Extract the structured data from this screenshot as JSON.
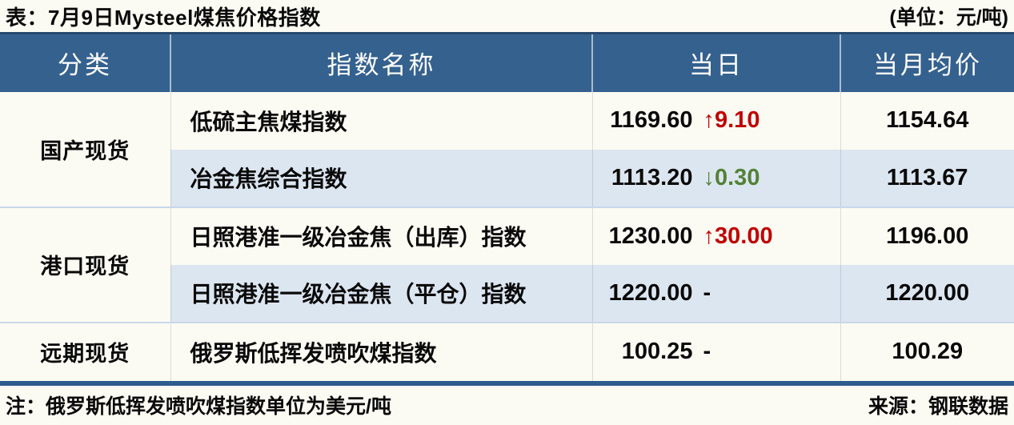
{
  "colors": {
    "header_bg": "#35618F",
    "header_top_edge": "#27496E",
    "header_text": "#FFFFFF",
    "alt_row_bg": "#DCE6F1",
    "page_bg": "#FCFBF3",
    "up": "#C00000",
    "down": "#538135",
    "text": "#0A0A0A",
    "table_bottom_border": "#2F5C8E",
    "group_separator": "#C9D7E9"
  },
  "title": {
    "text": "表：7月9日Mysteel煤焦价格指数",
    "unit": "(单位：元/吨)"
  },
  "table": {
    "columns": [
      "分类",
      "指数名称",
      "当日",
      "当月均价"
    ],
    "rows": [
      {
        "category": "国产现货",
        "category_span": 2,
        "name": "低硫主焦煤指数",
        "today_value": "1169.60",
        "today_change": "↑9.10",
        "change_dir": "up",
        "month_avg": "1154.64"
      },
      {
        "name": "冶金焦综合指数",
        "today_value": "1113.20",
        "today_change": "↓0.30",
        "change_dir": "down",
        "month_avg": "1113.67"
      },
      {
        "category": "港口现货",
        "category_span": 2,
        "name": "日照港准一级冶金焦（出库）指数",
        "today_value": "1230.00",
        "today_change": "↑30.00",
        "change_dir": "up",
        "month_avg": "1196.00"
      },
      {
        "name": "日照港准一级冶金焦（平仓）指数",
        "today_value": "1220.00",
        "today_change": "-",
        "change_dir": "flat",
        "month_avg": "1220.00"
      },
      {
        "category": "远期现货",
        "category_span": 1,
        "name": "俄罗斯低挥发喷吹煤指数",
        "today_value": "100.25",
        "today_change": "-",
        "change_dir": "flat",
        "month_avg": "100.29"
      }
    ]
  },
  "footer": {
    "note": "注：俄罗斯低挥发喷吹煤指数单位为美元/吨",
    "source": "来源：钢联数据"
  },
  "chart_data": {
    "type": "table",
    "title": "表：7月9日Mysteel煤焦价格指数",
    "unit": "元/吨",
    "columns": [
      "分类",
      "指数名称",
      "当日",
      "当月均价"
    ],
    "rows": [
      [
        "国产现货",
        "低硫主焦煤指数",
        "1169.60 ↑9.10",
        "1154.64"
      ],
      [
        "国产现货",
        "冶金焦综合指数",
        "1113.20 ↓0.30",
        "1113.67"
      ],
      [
        "港口现货",
        "日照港准一级冶金焦（出库）指数",
        "1230.00 ↑30.00",
        "1196.00"
      ],
      [
        "港口现货",
        "日照港准一级冶金焦（平仓）指数",
        "1220.00 -",
        "1220.00"
      ],
      [
        "远期现货",
        "俄罗斯低挥发喷吹煤指数",
        "100.25 -",
        "100.29"
      ]
    ],
    "today_changes": [
      9.1,
      -0.3,
      30.0,
      null,
      null
    ],
    "note": "注：俄罗斯低挥发喷吹煤指数单位为美元/吨",
    "source": "来源：钢联数据"
  }
}
